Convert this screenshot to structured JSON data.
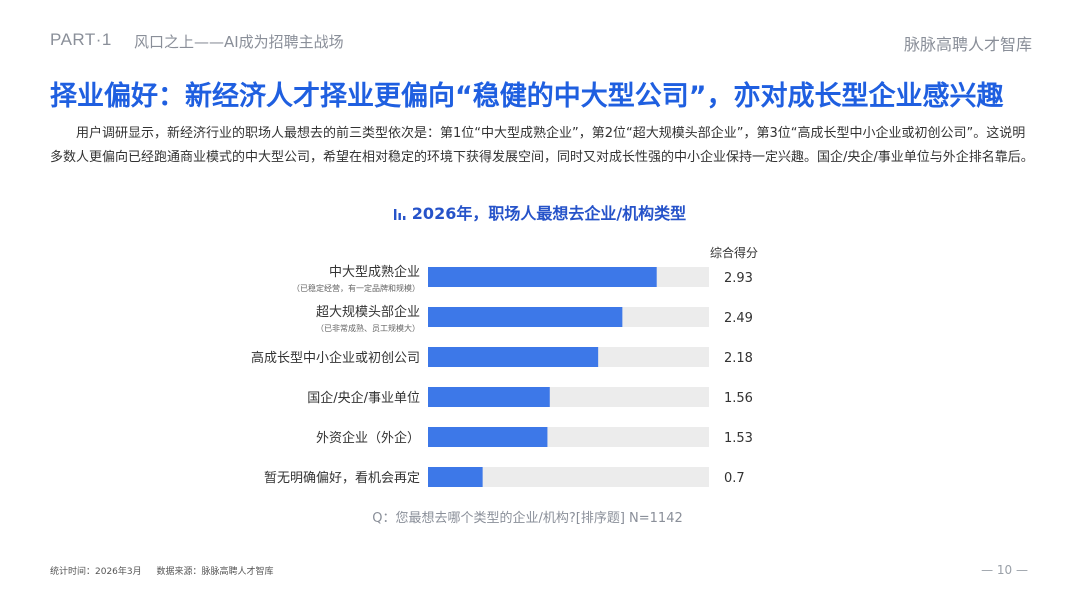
{
  "header": {
    "part": "PART·1",
    "section": "风口之上——AI成为招聘主战场",
    "brand": "脉脉高聘人才智库"
  },
  "main_title": "择业偏好：新经济人才择业更偏向“稳健的中大型公司”，亦对成长型企业感兴趣",
  "intro": "用户调研显示，新经济行业的职场人最想去的前三类型依次是：第1位“中大型成熟企业”，第2位“超大规模头部企业”，第3位“高成长型中小企业或初创公司”。这说明多数人更偏向已经跑通商业模式的中大型公司，希望在相对稳定的环境下获得发展空间，同时又对成长性强的中小企业保持一定兴趣。国企/央企/事业单位与外企排名靠后。",
  "chart_data": {
    "type": "bar",
    "orientation": "horizontal",
    "title": "2026年，职场人最想去企业/机构类型",
    "value_header": "综合得分",
    "categories": [
      "中大型成熟企业",
      "超大规模头部企业",
      "高成长型中小企业或初创公司",
      "国企/央企/事业单位",
      "外资企业（外企）",
      "暂无明确偏好，看机会再定"
    ],
    "category_notes": [
      "（已稳定经营，有一定品牌和规模）",
      "（已非常成熟、员工规模大）",
      "",
      "",
      "",
      ""
    ],
    "values": [
      2.93,
      2.49,
      2.18,
      1.56,
      1.53,
      0.7
    ],
    "value_labels": [
      "2.93",
      "2.49",
      "2.18",
      "1.56",
      "1.53",
      "0.7"
    ],
    "xlim": [
      0,
      3.6
    ],
    "colors": {
      "bar": "#3d78e8",
      "track": "#ececec"
    },
    "question": "Q：您最想去哪个类型的企业/机构?[排序题]     N=1142"
  },
  "footer": {
    "stat_time": "统计时间：2026年3月",
    "source": "数据来源：脉脉高聘人才智库",
    "page": "— 10 —"
  }
}
